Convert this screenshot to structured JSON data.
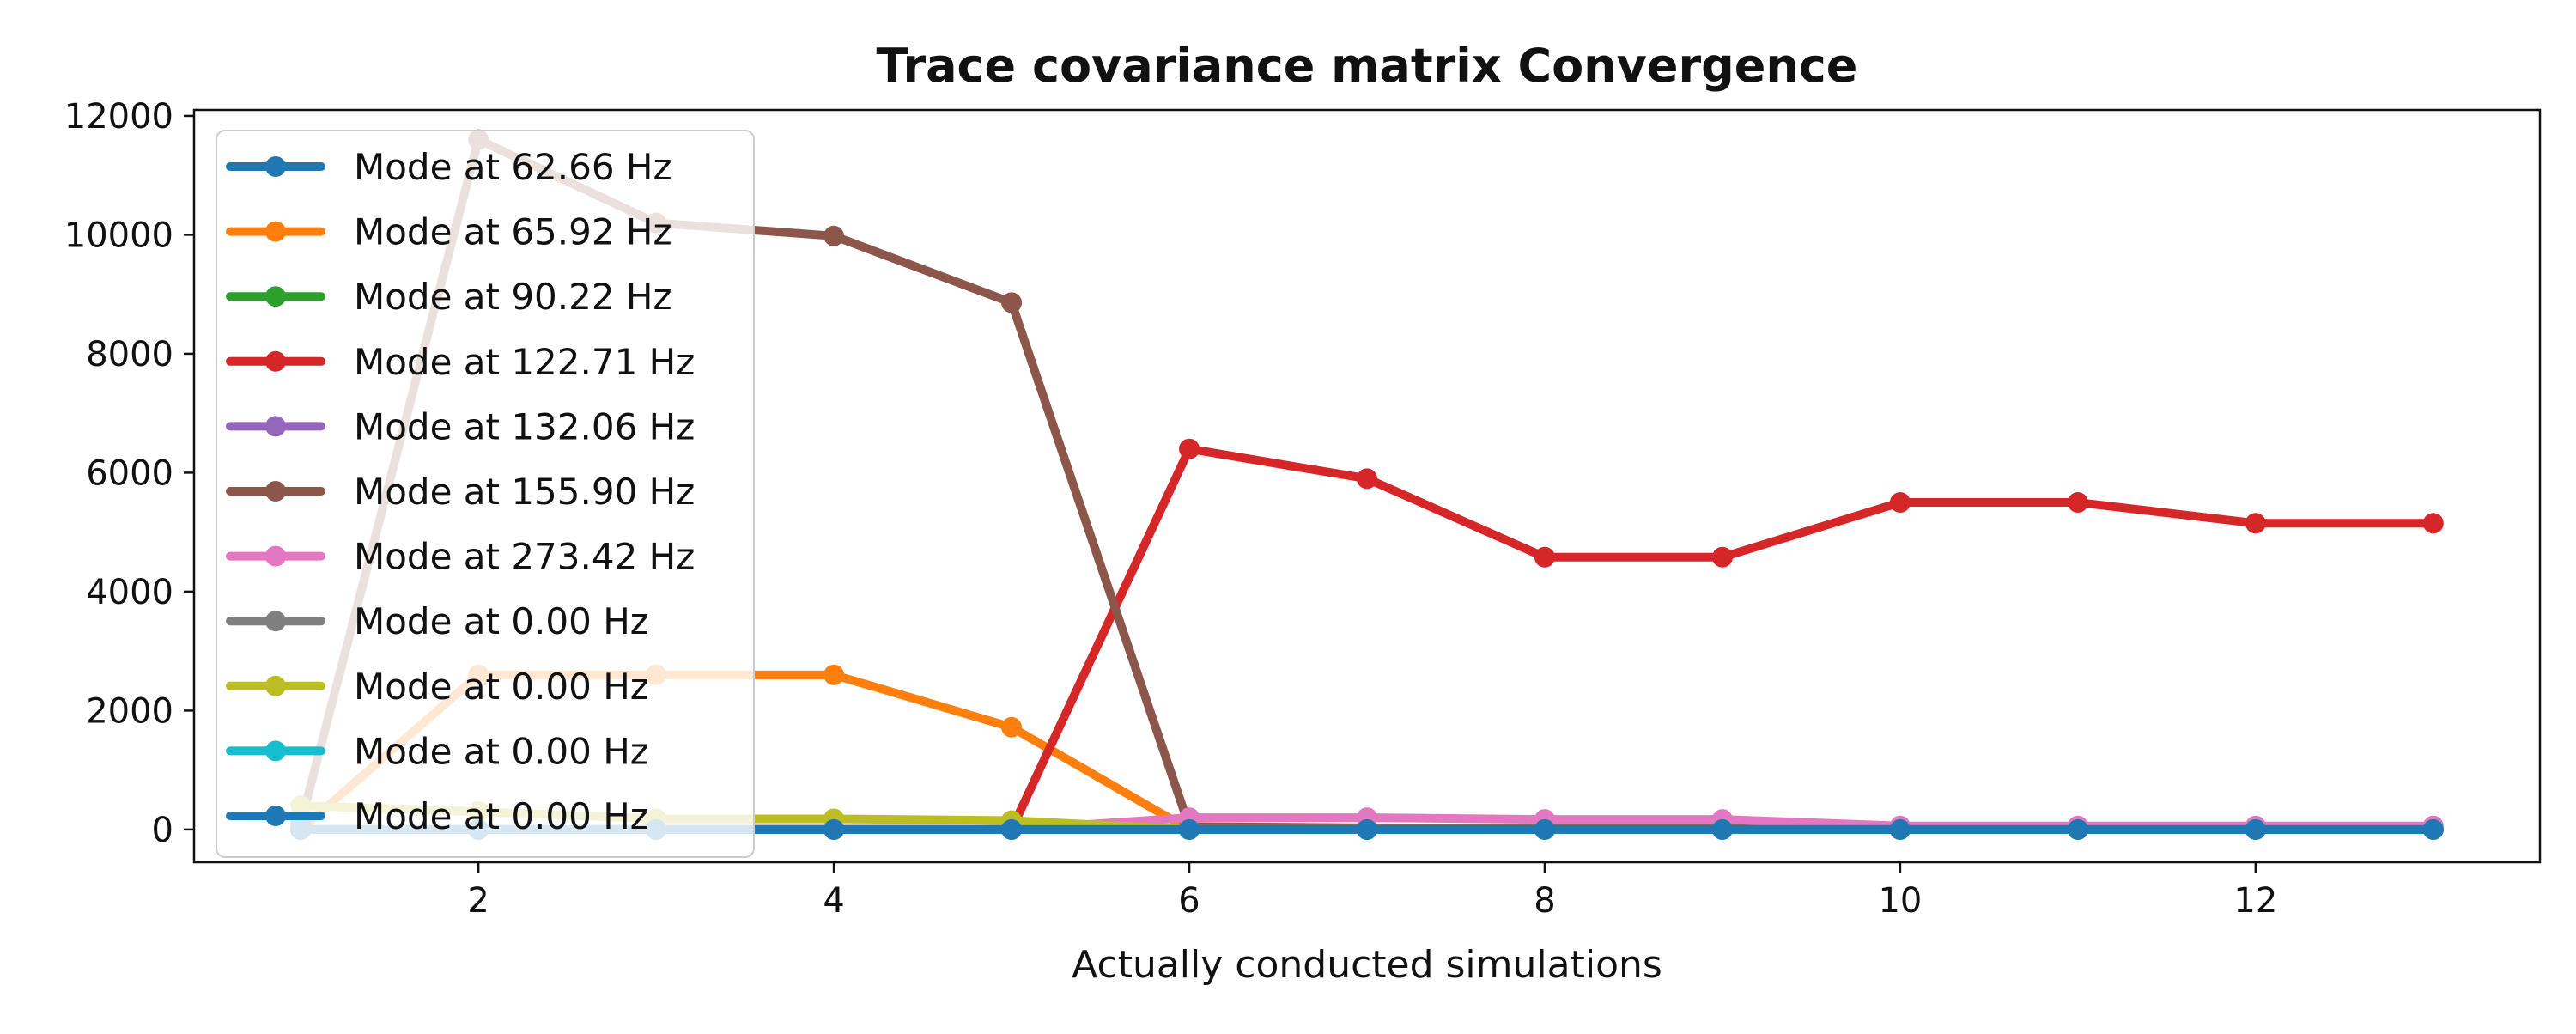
{
  "chart_data": {
    "type": "line",
    "title": "Trace covariance matrix Convergence",
    "xlabel": "Actually conducted simulations",
    "ylabel": "",
    "x": [
      1,
      2,
      3,
      4,
      5,
      6,
      7,
      8,
      9,
      10,
      11,
      12,
      13
    ],
    "xlim": [
      0.4,
      13.6
    ],
    "ylim": [
      -550,
      12100
    ],
    "xticks": [
      2,
      4,
      6,
      8,
      10,
      12
    ],
    "yticks": [
      0,
      2000,
      4000,
      6000,
      8000,
      10000,
      12000
    ],
    "grid": false,
    "legend_position": "upper-left",
    "series": [
      {
        "name": "Mode at 62.66 Hz",
        "color": "#1f77b4",
        "values": [
          0,
          0,
          0,
          0,
          0,
          0,
          0,
          0,
          0,
          0,
          0,
          0,
          0
        ]
      },
      {
        "name": "Mode at 65.92 Hz",
        "color": "#ff7f0e",
        "values": [
          0,
          2600,
          2600,
          2600,
          1720,
          0,
          0,
          0,
          0,
          0,
          0,
          0,
          0
        ]
      },
      {
        "name": "Mode at 90.22 Hz",
        "color": "#2ca02c",
        "values": [
          0,
          0,
          0,
          0,
          0,
          0,
          0,
          0,
          0,
          0,
          0,
          0,
          0
        ]
      },
      {
        "name": "Mode at 122.71 Hz",
        "color": "#d62728",
        "values": [
          0,
          0,
          0,
          0,
          0,
          6400,
          5900,
          4580,
          4580,
          5500,
          5500,
          5150,
          5150
        ]
      },
      {
        "name": "Mode at 132.06 Hz",
        "color": "#9467bd",
        "values": [
          0,
          0,
          0,
          0,
          0,
          0,
          0,
          0,
          0,
          0,
          0,
          0,
          0
        ]
      },
      {
        "name": "Mode at 155.90 Hz",
        "color": "#8c564b",
        "values": [
          100,
          11600,
          10200,
          9980,
          8860,
          50,
          30,
          20,
          20,
          10,
          10,
          10,
          10
        ]
      },
      {
        "name": "Mode at 273.42 Hz",
        "color": "#e377c2",
        "values": [
          0,
          0,
          0,
          0,
          0,
          200,
          200,
          170,
          170,
          60,
          60,
          60,
          60
        ]
      },
      {
        "name": "Mode at 0.00 Hz",
        "color": "#7f7f7f",
        "values": [
          0,
          0,
          0,
          0,
          0,
          0,
          0,
          0,
          0,
          0,
          0,
          0,
          0
        ]
      },
      {
        "name": "Mode at 0.00 Hz",
        "color": "#bcbd22",
        "values": [
          400,
          300,
          180,
          180,
          150,
          0,
          0,
          0,
          0,
          0,
          0,
          0,
          0
        ]
      },
      {
        "name": "Mode at 0.00 Hz",
        "color": "#17becf",
        "values": [
          0,
          0,
          0,
          0,
          0,
          0,
          0,
          0,
          0,
          0,
          0,
          0,
          0
        ]
      },
      {
        "name": "Mode at 0.00 Hz",
        "color": "#1f77b4",
        "values": [
          0,
          0,
          0,
          0,
          0,
          0,
          0,
          0,
          0,
          0,
          0,
          0,
          0
        ]
      }
    ]
  }
}
